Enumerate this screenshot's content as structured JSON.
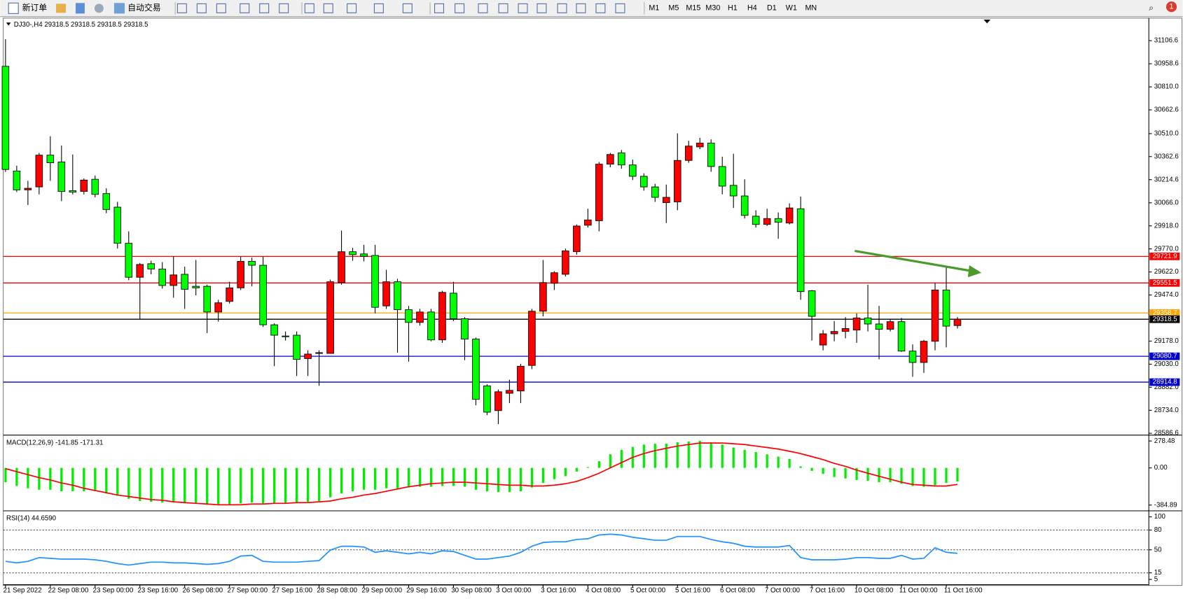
{
  "toolbar": {
    "order_button": "新订单",
    "auto_trade_button": "自动交易",
    "timeframes": [
      "M1",
      "M5",
      "M15",
      "M30",
      "H1",
      "H4",
      "D1",
      "W1",
      "MN"
    ],
    "notification_count": 1
  },
  "chart_data": [
    {
      "type": "candlestick",
      "title": "DJ30-,H4  29318.5 29318.5 29318.5 29318.5",
      "categories": [
        "21 Sep 2022",
        null,
        null,
        null,
        "22 Sep 08:00",
        null,
        null,
        null,
        "23 Sep 00:00",
        null,
        null,
        null,
        "23 Sep 16:00",
        null,
        null,
        null,
        "26 Sep 08:00",
        null,
        null,
        null,
        "27 Sep 00:00",
        null,
        null,
        null,
        "27 Sep 16:00",
        null,
        null,
        null,
        "28 Sep 08:00",
        null,
        null,
        null,
        "29 Sep 00:00",
        null,
        null,
        null,
        "29 Sep 16:00",
        null,
        null,
        null,
        "30 Sep 08:00",
        null,
        null,
        null,
        "3 Oct 00:00",
        null,
        null,
        null,
        "3 Oct 16:00",
        null,
        null,
        null,
        "4 Oct 08:00",
        null,
        null,
        null,
        "5 Oct 00:00",
        null,
        null,
        null,
        "5 Oct 16:00",
        null,
        null,
        null,
        "6 Oct 08:00",
        null,
        null,
        null,
        "7 Oct 00:00",
        null,
        null,
        null,
        "7 Oct 16:00",
        null,
        null,
        null,
        "10 Oct 08:00",
        null,
        null,
        null,
        "11 Oct 00:00",
        null,
        null,
        null,
        "11 Oct 16:00",
        null
      ],
      "open": [
        30942,
        30270,
        30149,
        30168,
        30372,
        30328,
        30144,
        30139,
        30217,
        30125,
        30038,
        29806,
        29588,
        29675,
        29641,
        29535,
        29607,
        29530,
        29530,
        29365,
        29433,
        29520,
        29690,
        29665,
        29283,
        29211,
        29216,
        29066,
        29099,
        29099,
        29554,
        29752,
        29738,
        29728,
        29404,
        29559,
        29380,
        29298,
        29365,
        29186,
        29486,
        29322,
        29191,
        28891,
        28732,
        28843,
        28858,
        29022,
        29370,
        29549,
        29607,
        29752,
        29922,
        29951,
        30314,
        30386,
        30309,
        30236,
        30168,
        30067,
        30072,
        30338,
        30425,
        30449,
        30299,
        30178,
        30110,
        29980,
        29927,
        29965,
        29936,
        30028,
        29501,
        29153,
        29225,
        29240,
        29249,
        29327,
        29288,
        29254,
        29303,
        29114,
        29041,
        29177,
        29506,
        29278
      ],
      "high": [
        31116,
        30304,
        30207,
        30386,
        30493,
        30434,
        30376,
        30222,
        30241,
        30159,
        30072,
        29883,
        29680,
        29694,
        29685,
        29723,
        29656,
        29699,
        29540,
        29443,
        29559,
        29719,
        29714,
        29719,
        29293,
        29240,
        29240,
        29119,
        29119,
        29573,
        29888,
        29777,
        29796,
        29796,
        29636,
        29578,
        29404,
        29385,
        29385,
        29501,
        29559,
        29332,
        29201,
        28901,
        28867,
        28930,
        29032,
        29385,
        29699,
        29627,
        29772,
        29927,
        30028,
        30328,
        30386,
        30405,
        30343,
        30255,
        30188,
        30183,
        30512,
        30464,
        30483,
        30473,
        30362,
        30381,
        30217,
        30018,
        30028,
        30004,
        30062,
        30106,
        29506,
        29249,
        29307,
        29332,
        29356,
        29540,
        29404,
        29317,
        29327,
        29157,
        29186,
        29554,
        29651,
        29332
      ],
      "low": [
        30265,
        30135,
        30052,
        30120,
        30207,
        30077,
        30120,
        30120,
        30101,
        29999,
        29772,
        29569,
        29322,
        29607,
        29515,
        29457,
        29385,
        29472,
        29230,
        29303,
        29419,
        29506,
        29530,
        29269,
        29017,
        29182,
        28954,
        28954,
        28891,
        29099,
        29540,
        29694,
        29690,
        29356,
        29385,
        29104,
        29046,
        29278,
        29177,
        29167,
        29307,
        29056,
        28766,
        28703,
        28645,
        28780,
        28780,
        28998,
        29337,
        29506,
        29593,
        29733,
        29907,
        29883,
        30294,
        30285,
        30212,
        30144,
        30072,
        29936,
        30018,
        30323,
        30410,
        30265,
        30120,
        30033,
        29965,
        29907,
        29917,
        29835,
        29927,
        29443,
        29182,
        29119,
        29177,
        29196,
        29167,
        29240,
        29061,
        29240,
        29109,
        28949,
        28974,
        29119,
        29138,
        29259
      ],
      "close": [
        30280,
        30149,
        30159,
        30372,
        30323,
        30139,
        30135,
        30212,
        30120,
        30023,
        29806,
        29588,
        29670,
        29641,
        29535,
        29603,
        29511,
        29520,
        29365,
        29424,
        29520,
        29690,
        29665,
        29283,
        29216,
        29206,
        29061,
        29095,
        29104,
        29559,
        29752,
        29733,
        29723,
        29395,
        29559,
        29380,
        29298,
        29365,
        29186,
        29491,
        29322,
        29191,
        28804,
        28722,
        28853,
        28862,
        29017,
        29370,
        29554,
        29617,
        29757,
        29917,
        29956,
        30314,
        30376,
        30309,
        30236,
        30168,
        30101,
        30101,
        30338,
        30430,
        30449,
        30299,
        30173,
        30110,
        29985,
        29927,
        29965,
        29941,
        30033,
        29496,
        29337,
        29225,
        29240,
        29259,
        29327,
        29288,
        29254,
        29303,
        29114,
        29041,
        29177,
        29506,
        29274,
        29318.5
      ],
      "up_color": "#ff0000",
      "down_color": "#00ff00",
      "ylim": [
        28577,
        31242
      ],
      "yticks": [
        31106.6,
        30958.6,
        {
          "value": 30810,
          "label": "30810.0"
        },
        30662.6,
        {
          "value": 30510,
          "label": "30510.0"
        },
        30362.6,
        30214.6,
        {
          "value": 30066,
          "label": "30066.0"
        },
        {
          "value": 29918,
          "label": "29918.0"
        },
        {
          "value": 29770,
          "label": "29770.0"
        },
        {
          "value": 29622,
          "label": "29622.0"
        },
        {
          "value": 29474,
          "label": "29474.0"
        },
        {
          "value": 29178,
          "label": "29178.0"
        },
        {
          "value": 29030,
          "label": "29030.0"
        },
        {
          "value": 28882,
          "label": "28882.0"
        },
        {
          "value": 28734,
          "label": "28734.0"
        },
        28586.6
      ],
      "levels": [
        {
          "value": 29721.9,
          "color": "#ff0000"
        },
        {
          "value": 29551.5,
          "color": "#ff0000"
        },
        {
          "value": 29358.7,
          "color": "#ffa500"
        },
        {
          "value": 29318.5,
          "color": "#000000"
        },
        {
          "value": 29080.7,
          "color": "#0000cd"
        },
        {
          "value": 28914.8,
          "color": "#0000cd"
        }
      ]
    },
    {
      "type": "macd",
      "title": "MACD(12,26,9) -141.85 -171.31",
      "histogram": {
        "color": "#00ee00",
        "values": [
          -148,
          -187,
          -211,
          -226,
          -226,
          -242,
          -242,
          -242,
          -242,
          -265,
          -289,
          -320,
          -343,
          -351,
          -359,
          -359,
          -367,
          -367,
          -382,
          -382,
          -382,
          -367,
          -359,
          -367,
          -367,
          -367,
          -367,
          -351,
          -343,
          -304,
          -265,
          -242,
          -226,
          -226,
          -211,
          -211,
          -203,
          -195,
          -195,
          -187,
          -187,
          -195,
          -226,
          -242,
          -250,
          -250,
          -242,
          -203,
          -156,
          -117,
          -86,
          -39,
          8,
          70,
          140,
          187,
          218,
          242,
          250,
          250,
          265,
          273,
          281,
          265,
          242,
          211,
          187,
          164,
          140,
          117,
          94,
          16,
          -31,
          -62,
          -94,
          -109,
          -125,
          -133,
          -148,
          -148,
          -164,
          -187,
          -195,
          -179,
          -156,
          -141.85
        ]
      },
      "signal": {
        "color": "#ff0000",
        "values": [
          -8,
          -39,
          -70,
          -101,
          -125,
          -156,
          -179,
          -211,
          -234,
          -257,
          -281,
          -296,
          -312,
          -328,
          -335,
          -351,
          -359,
          -367,
          -374,
          -382,
          -382,
          -382,
          -374,
          -374,
          -367,
          -367,
          -359,
          -359,
          -351,
          -343,
          -320,
          -304,
          -281,
          -265,
          -242,
          -218,
          -195,
          -179,
          -164,
          -156,
          -148,
          -148,
          -156,
          -164,
          -172,
          -179,
          -179,
          -187,
          -187,
          -179,
          -164,
          -140,
          -101,
          -55,
          0,
          55,
          109,
          148,
          179,
          203,
          226,
          242,
          257,
          257,
          257,
          250,
          242,
          226,
          211,
          195,
          172,
          148,
          117,
          86,
          47,
          16,
          -23,
          -55,
          -86,
          -117,
          -148,
          -172,
          -179,
          -187,
          -187,
          -171.31
        ]
      },
      "ylim": [
        -436.8,
        327.6
      ],
      "yticks": [
        278.48,
        {
          "value": 0,
          "label": "0.00"
        },
        -384.89
      ]
    },
    {
      "type": "line",
      "title": "RSI(14) 44.6590",
      "color": "#1e90ff",
      "values": [
        32.5,
        30.2,
        32.5,
        38.2,
        37.1,
        35.9,
        35.9,
        35.9,
        34.8,
        32.5,
        29.1,
        26.8,
        29.1,
        31.3,
        31.3,
        30.2,
        30.2,
        29.1,
        27.9,
        29.1,
        32.5,
        40.5,
        41.6,
        32.5,
        31.3,
        31.3,
        31.3,
        32.5,
        33.6,
        49.6,
        55.4,
        55.4,
        54.2,
        46.2,
        48.5,
        46.2,
        43.9,
        46.2,
        43.9,
        48.5,
        47.4,
        41.6,
        35.9,
        35.9,
        38.2,
        40.5,
        46.2,
        55.4,
        61.1,
        62.2,
        62.2,
        65.7,
        66.8,
        72.5,
        73.7,
        72.5,
        69.1,
        66.8,
        64.5,
        64.5,
        70.2,
        70.2,
        70.2,
        65.7,
        62.2,
        59.9,
        55.4,
        54.2,
        54.2,
        54.2,
        56.5,
        38.2,
        34.8,
        34.8,
        34.8,
        35.9,
        38.2,
        38.2,
        37.1,
        37.1,
        41.6,
        35.9,
        37.1,
        53.1,
        46.2,
        44.659
      ],
      "ylim": [
        -1.8,
        108
      ],
      "yticks": [
        100,
        80,
        50,
        15,
        5
      ],
      "levels": [
        80,
        50,
        15
      ]
    }
  ]
}
